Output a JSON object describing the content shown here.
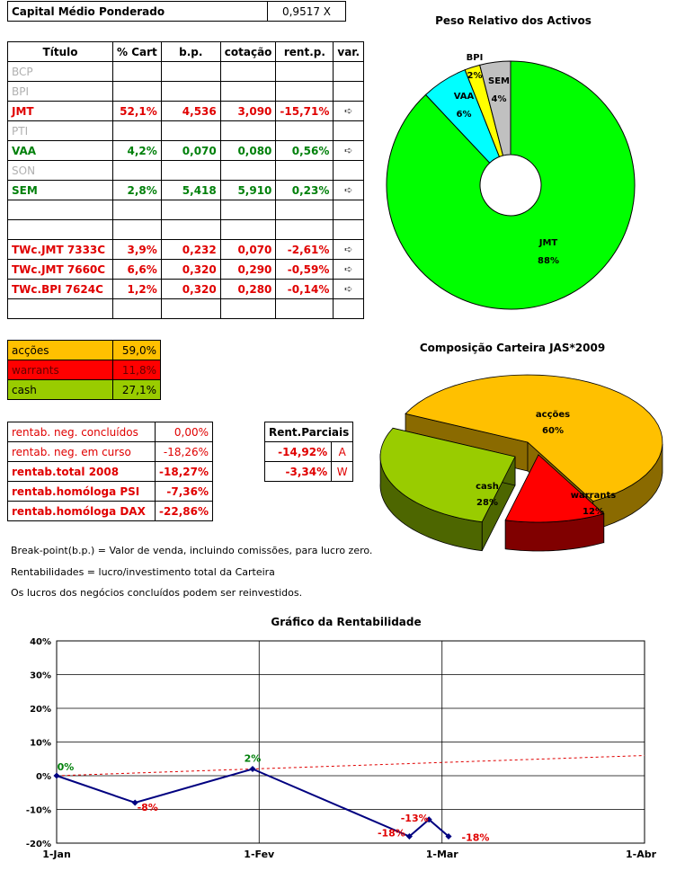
{
  "capital": {
    "label": "Capital Médio Ponderado",
    "value": "0,9517 X"
  },
  "main_table": {
    "headers": [
      "Título",
      "% Cart",
      "b.p.",
      "cotação",
      "rent.p.",
      "var."
    ],
    "rows": [
      {
        "titulo": "BCP",
        "cart": "",
        "bp": "",
        "cot": "",
        "rent": "",
        "var": "",
        "style": "gray"
      },
      {
        "titulo": "BPI",
        "cart": "",
        "bp": "",
        "cot": "",
        "rent": "",
        "var": "",
        "style": "gray"
      },
      {
        "titulo": "JMT",
        "cart": "52,1%",
        "bp": "4,536",
        "cot": "3,090",
        "rent": "-15,71%",
        "var": "➪",
        "style": "red"
      },
      {
        "titulo": "PTI",
        "cart": "",
        "bp": "",
        "cot": "",
        "rent": "",
        "var": "",
        "style": "gray"
      },
      {
        "titulo": "VAA",
        "cart": "4,2%",
        "bp": "0,070",
        "cot": "0,080",
        "rent": "0,56%",
        "var": "➪",
        "style": "green"
      },
      {
        "titulo": "SON",
        "cart": "",
        "bp": "",
        "cot": "",
        "rent": "",
        "var": "",
        "style": "gray"
      },
      {
        "titulo": "SEM",
        "cart": "2,8%",
        "bp": "5,418",
        "cot": "5,910",
        "rent": "0,23%",
        "var": "➪",
        "style": "green"
      },
      {
        "titulo": "",
        "cart": "",
        "bp": "",
        "cot": "",
        "rent": "",
        "var": "",
        "style": "gray"
      },
      {
        "titulo": "",
        "cart": "",
        "bp": "",
        "cot": "",
        "rent": "",
        "var": "",
        "style": "gray"
      },
      {
        "titulo": "TWc.JMT 7333C",
        "cart": "3,9%",
        "bp": "0,232",
        "cot": "0,070",
        "rent": "-2,61%",
        "var": "➪",
        "style": "red"
      },
      {
        "titulo": "TWc.JMT 7660C",
        "cart": "6,6%",
        "bp": "0,320",
        "cot": "0,290",
        "rent": "-0,59%",
        "var": "➪",
        "style": "red"
      },
      {
        "titulo": "TWc.BPI 7624C",
        "cart": "1,2%",
        "bp": "0,320",
        "cot": "0,280",
        "rent": "-0,14%",
        "var": "➪",
        "style": "red"
      },
      {
        "titulo": "",
        "cart": "",
        "bp": "",
        "cot": "",
        "rent": "",
        "var": "",
        "style": "gray"
      }
    ]
  },
  "composition": [
    {
      "label": "acções",
      "value": "59,0%",
      "bg": "#ffc000"
    },
    {
      "label": "warrants",
      "value": "11,8%",
      "bg": "#ff0000"
    },
    {
      "label": "cash",
      "value": "27,1%",
      "bg": "#99cc00"
    }
  ],
  "rentab": [
    {
      "label": "rentab. neg. concluídos",
      "value": "0,00%",
      "bold": false
    },
    {
      "label": "rentab. neg. em curso",
      "value": "-18,26%",
      "bold": false
    },
    {
      "label": "rentab.total 2008",
      "value": "-18,27%",
      "bold": true
    },
    {
      "label": "rentab.homóloga PSI",
      "value": "-7,36%",
      "bold": true
    },
    {
      "label": "rentab.homóloga DAX",
      "value": "-22,86%",
      "bold": true
    }
  ],
  "parciais": {
    "title": "Rent.Parciais",
    "rows": [
      {
        "value": "-14,92%",
        "tag": "A"
      },
      {
        "value": "-3,34%",
        "tag": "W"
      }
    ]
  },
  "notes": [
    "Break-point(b.p.) = Valor de venda, incluindo comissões, para lucro zero.",
    "Rentabilidades = lucro/investimento total da Carteira",
    "Os lucros dos negócios concluídos podem ser reinvestidos."
  ],
  "colors": {
    "red": "#e00000",
    "green": "#00800a",
    "navy": "#000080"
  },
  "chart_data": [
    {
      "type": "pie",
      "variant": "doughnut",
      "title": "Peso Relativo dos Activos",
      "slices": [
        {
          "label": "JMT",
          "pct_label": "88%",
          "value": 88,
          "color": "#00ff00"
        },
        {
          "label": "VAA",
          "pct_label": "6%",
          "value": 6,
          "color": "#00ffff"
        },
        {
          "label": "BPI",
          "pct_label": "2%",
          "value": 2,
          "color": "#ffff00"
        },
        {
          "label": "SEM",
          "pct_label": "4%",
          "value": 4,
          "color": "#c0c0c0"
        }
      ]
    },
    {
      "type": "pie",
      "variant": "3d-exploded",
      "title": "Composição Carteira JAS*2009",
      "slices": [
        {
          "label": "acções",
          "pct_label": "60%",
          "value": 60,
          "color": "#ffc000"
        },
        {
          "label": "warrants",
          "pct_label": "12%",
          "value": 12,
          "color": "#ff0000"
        },
        {
          "label": "cash",
          "pct_label": "28%",
          "value": 28,
          "color": "#99cc00"
        }
      ]
    },
    {
      "type": "line",
      "title": "Gráfico da Rentabilidade",
      "x_ticks": [
        "1-Jan",
        "1-Fev",
        "1-Mar",
        "1-Abr"
      ],
      "y_ticks": [
        "40%",
        "30%",
        "20%",
        "10%",
        "0%",
        "-10%",
        "-20%"
      ],
      "ylim": [
        -20,
        40
      ],
      "xlim": [
        "2009-01-01",
        "2009-04-01"
      ],
      "grid": true,
      "series": [
        {
          "points": [
            {
              "x": "2009-01-01",
              "y": 0,
              "label": "0%",
              "label_color": "#00800a"
            },
            {
              "x": "2009-01-13",
              "y": -8,
              "label": "-8%",
              "label_color": "#e00000"
            },
            {
              "x": "2009-01-31",
              "y": 2,
              "label": "2%",
              "label_color": "#00800a"
            },
            {
              "x": "2009-02-24",
              "y": -18,
              "label": "-18%",
              "label_color": "#e00000"
            },
            {
              "x": "2009-02-27",
              "y": -13,
              "label": "-13%",
              "label_color": "#e00000"
            },
            {
              "x": "2009-03-02",
              "y": -18,
              "label": "-18%",
              "label_color": "#e00000"
            }
          ],
          "color": "#000080"
        },
        {
          "trend": true,
          "points": [
            {
              "x": "2009-01-01",
              "y": 0
            },
            {
              "x": "2009-04-01",
              "y": 6
            }
          ],
          "color": "#e00000",
          "dashed": true
        }
      ]
    }
  ]
}
